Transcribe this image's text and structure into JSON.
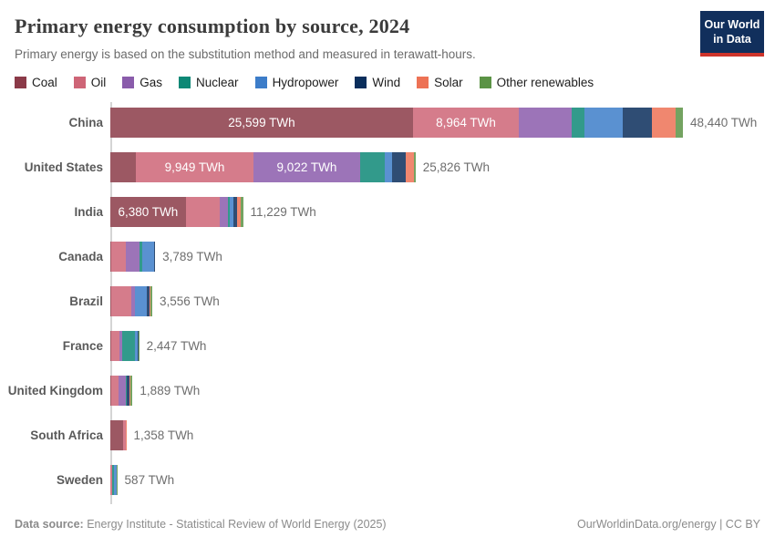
{
  "header": {
    "title": "Primary energy consumption by source, 2024",
    "subtitle": "Primary energy is based on the substitution method and measured in terawatt-hours.",
    "logo": {
      "line1": "Our World",
      "line2": "in Data",
      "bg_color": "#112f5c",
      "accent_color": "#ce342b"
    }
  },
  "chart_data": {
    "type": "bar",
    "stacked": true,
    "orientation": "horizontal",
    "unit": "TWh",
    "xlim": [
      0,
      48440
    ],
    "grid": false,
    "legend_position": "top",
    "sources": [
      {
        "name": "Coal",
        "color": "#8b3a48"
      },
      {
        "name": "Oil",
        "color": "#ce6577"
      },
      {
        "name": "Gas",
        "color": "#8a5cab"
      },
      {
        "name": "Nuclear",
        "color": "#0e8876"
      },
      {
        "name": "Hydropower",
        "color": "#3d7dc9"
      },
      {
        "name": "Wind",
        "color": "#0a2e5c"
      },
      {
        "name": "Solar",
        "color": "#ed7255"
      },
      {
        "name": "Other renewables",
        "color": "#5b9345"
      }
    ],
    "rows": [
      {
        "country": "China",
        "total": 48440,
        "total_label": "48,440 TWh",
        "values": [
          25599,
          8964,
          4431,
          1100,
          3226,
          2500,
          2000,
          620
        ],
        "segment_labels": [
          "25,599 TWh",
          "8,964 TWh",
          "",
          "",
          "",
          "",
          "",
          ""
        ]
      },
      {
        "country": "United States",
        "total": 25826,
        "total_label": "25,826 TWh",
        "values": [
          2160,
          9949,
          9022,
          2100,
          620,
          1150,
          660,
          165
        ],
        "segment_labels": [
          "",
          "9,949 TWh",
          "9,022 TWh",
          "",
          "",
          "",
          "",
          ""
        ]
      },
      {
        "country": "India",
        "total": 11229,
        "total_label": "11,229 TWh",
        "values": [
          6380,
          2905,
          640,
          150,
          370,
          250,
          330,
          204
        ],
        "segment_labels": [
          "6,380 TWh",
          "",
          "",
          "",
          "",
          "",
          "",
          ""
        ]
      },
      {
        "country": "Canada",
        "total": 3789,
        "total_label": "3,789 TWh",
        "values": [
          40,
          1290,
          1160,
          240,
          990,
          60,
          5,
          4
        ],
        "segment_labels": [
          "",
          "",
          "",
          "",
          "",
          "",
          "",
          ""
        ]
      },
      {
        "country": "Brazil",
        "total": 3556,
        "total_label": "3,556 TWh",
        "values": [
          100,
          1650,
          300,
          35,
          1000,
          230,
          120,
          121
        ],
        "segment_labels": [
          "",
          "",
          "",
          "",
          "",
          "",
          "",
          ""
        ]
      },
      {
        "country": "France",
        "total": 2447,
        "total_label": "2,447 TWh",
        "values": [
          50,
          700,
          290,
          1020,
          230,
          90,
          45,
          22
        ],
        "segment_labels": [
          "",
          "",
          "",
          "",
          "",
          "",
          "",
          ""
        ]
      },
      {
        "country": "United Kingdom",
        "total": 1889,
        "total_label": "1,889 TWh",
        "values": [
          60,
          650,
          600,
          100,
          15,
          220,
          35,
          209
        ],
        "segment_labels": [
          "",
          "",
          "",
          "",
          "",
          "",
          "",
          ""
        ]
      },
      {
        "country": "South Africa",
        "total": 1358,
        "total_label": "1,358 TWh",
        "values": [
          1050,
          260,
          20,
          8,
          2,
          8,
          7,
          3
        ],
        "segment_labels": [
          "",
          "",
          "",
          "",
          "",
          "",
          "",
          ""
        ]
      },
      {
        "country": "Sweden",
        "total": 587,
        "total_label": "587 TWh",
        "values": [
          10,
          160,
          5,
          115,
          230,
          45,
          10,
          12
        ],
        "segment_labels": [
          "",
          "",
          "",
          "",
          "",
          "",
          "",
          ""
        ]
      }
    ]
  },
  "footer": {
    "source_prefix": "Data source:",
    "source_text": " Energy Institute - Statistical Review of World Energy (2025)",
    "license_text": "OurWorldinData.org/energy | CC BY"
  }
}
